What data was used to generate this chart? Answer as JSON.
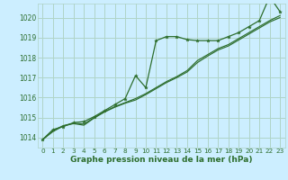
{
  "background_color": "#cceeff",
  "grid_color": "#b0d4c8",
  "line_color": "#2d6e2d",
  "title": "Graphe pression niveau de la mer (hPa)",
  "xlim": [
    -0.5,
    23.5
  ],
  "ylim": [
    1013.5,
    1020.7
  ],
  "yticks": [
    1014,
    1015,
    1016,
    1017,
    1018,
    1019,
    1020
  ],
  "xticks": [
    0,
    1,
    2,
    3,
    4,
    5,
    6,
    7,
    8,
    9,
    10,
    11,
    12,
    13,
    14,
    15,
    16,
    17,
    18,
    19,
    20,
    21,
    22,
    23
  ],
  "series": [
    [
      1013.9,
      1014.4,
      1014.55,
      1014.75,
      1014.8,
      1015.05,
      1015.35,
      1015.65,
      1015.95,
      1017.1,
      1016.5,
      1018.85,
      1019.05,
      1019.05,
      1018.9,
      1018.85,
      1018.85,
      1018.85,
      1019.05,
      1019.25,
      1019.55,
      1019.85,
      1021.05,
      1020.3
    ],
    [
      1013.9,
      1014.35,
      1014.6,
      1014.72,
      1014.68,
      1015.0,
      1015.3,
      1015.55,
      1015.75,
      1015.95,
      1016.2,
      1016.5,
      1016.8,
      1017.05,
      1017.35,
      1017.85,
      1018.15,
      1018.45,
      1018.65,
      1018.95,
      1019.25,
      1019.55,
      1019.85,
      1020.1
    ],
    [
      1013.9,
      1014.3,
      1014.58,
      1014.7,
      1014.62,
      1014.98,
      1015.28,
      1015.52,
      1015.72,
      1015.88,
      1016.15,
      1016.45,
      1016.75,
      1017.0,
      1017.28,
      1017.75,
      1018.08,
      1018.38,
      1018.58,
      1018.88,
      1019.18,
      1019.48,
      1019.78,
      1020.0
    ]
  ],
  "title_fontsize": 6.5,
  "tick_fontsize": 5.5,
  "xlabel_fontsize": 5.2
}
